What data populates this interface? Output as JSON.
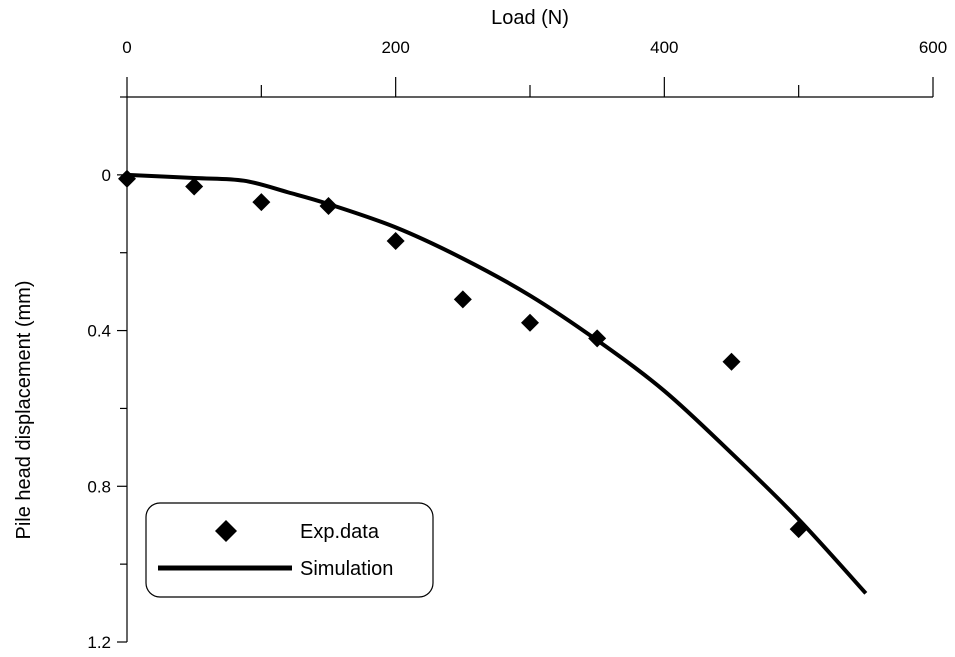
{
  "chart_data": {
    "type": "scatter",
    "xlabel": "Load (N)",
    "ylabel": "Pile head displacement (mm)",
    "x_axis_position": "top",
    "y_axis_inverted": true,
    "xlim": [
      0,
      600
    ],
    "ylim": [
      -0.2,
      1.2
    ],
    "x_ticks": [
      0,
      200,
      400,
      600
    ],
    "x_tick_labels": [
      "0",
      "200",
      "400",
      "600"
    ],
    "x_minor_ticks": [
      100,
      300,
      500
    ],
    "y_ticks": [
      0,
      0.4,
      0.8,
      1.2
    ],
    "y_tick_labels": [
      "0",
      "0.4",
      "0.8",
      "1.2"
    ],
    "y_minor_ticks": [
      -0.2,
      0.2,
      0.6,
      1.0
    ],
    "grid": false,
    "legend_position": "bottom-left",
    "series": [
      {
        "name": "Exp.data",
        "kind": "scatter",
        "marker": "diamond",
        "color": "#000000",
        "x": [
          0,
          50,
          100,
          150,
          200,
          250,
          300,
          350,
          450,
          500
        ],
        "y": [
          0.01,
          0.03,
          0.07,
          0.08,
          0.17,
          0.32,
          0.38,
          0.42,
          0.48,
          0.91
        ]
      },
      {
        "name": "Simulation",
        "kind": "line",
        "color": "#000000",
        "x": [
          0,
          50,
          87,
          120,
          150,
          200,
          250,
          300,
          350,
          400,
          450,
          500,
          550
        ],
        "y": [
          0.0,
          0.008,
          0.015,
          0.045,
          0.075,
          0.135,
          0.215,
          0.31,
          0.425,
          0.555,
          0.715,
          0.885,
          1.075
        ]
      }
    ]
  }
}
